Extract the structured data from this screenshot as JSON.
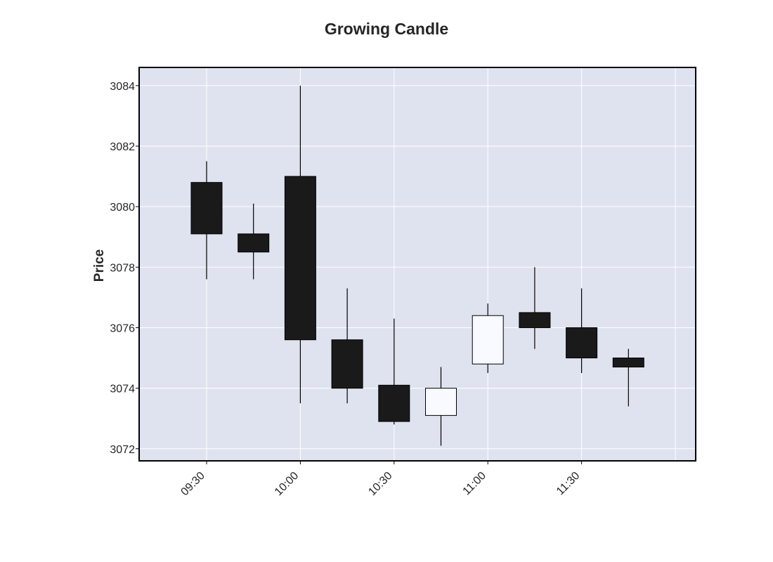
{
  "chart_data": {
    "type": "candlestick",
    "title": "Growing Candle",
    "xlabel": "",
    "ylabel": "Price",
    "ylim": [
      3071.6,
      3084.6
    ],
    "yticks": [
      3072,
      3074,
      3076,
      3078,
      3080,
      3082,
      3084
    ],
    "x_tick_labels": [
      {
        "index": 0,
        "label": "09:30"
      },
      {
        "index": 2,
        "label": "10:00"
      },
      {
        "index": 4,
        "label": "10:30"
      },
      {
        "index": 6,
        "label": "11:00"
      },
      {
        "index": 8,
        "label": "11:30"
      }
    ],
    "candles": [
      {
        "time": "09:30",
        "open": 3080.8,
        "high": 3081.5,
        "low": 3077.6,
        "close": 3079.1
      },
      {
        "time": "09:45",
        "open": 3079.1,
        "high": 3080.1,
        "low": 3077.6,
        "close": 3078.5
      },
      {
        "time": "10:00",
        "open": 3081.0,
        "high": 3084.0,
        "low": 3073.5,
        "close": 3075.6
      },
      {
        "time": "10:15",
        "open": 3075.6,
        "high": 3077.3,
        "low": 3073.5,
        "close": 3074.0
      },
      {
        "time": "10:30",
        "open": 3074.1,
        "high": 3076.3,
        "low": 3072.8,
        "close": 3072.9
      },
      {
        "time": "10:45",
        "open": 3073.1,
        "high": 3074.7,
        "low": 3072.1,
        "close": 3074.0
      },
      {
        "time": "11:00",
        "open": 3074.8,
        "high": 3076.8,
        "low": 3074.5,
        "close": 3076.4
      },
      {
        "time": "11:15",
        "open": 3076.5,
        "high": 3078.0,
        "low": 3075.3,
        "close": 3076.0
      },
      {
        "time": "11:30",
        "open": 3076.0,
        "high": 3077.3,
        "low": 3074.5,
        "close": 3075.0
      },
      {
        "time": "11:45",
        "open": 3075.0,
        "high": 3075.3,
        "low": 3073.4,
        "close": 3074.7
      }
    ],
    "grid": true,
    "colors": {
      "plot_background": "#dfe3ef",
      "grid": "#ffffff",
      "up_fill": "#f8faff",
      "down_fill": "#1a1a1a",
      "outline": "#000000",
      "text": "#262626"
    }
  }
}
